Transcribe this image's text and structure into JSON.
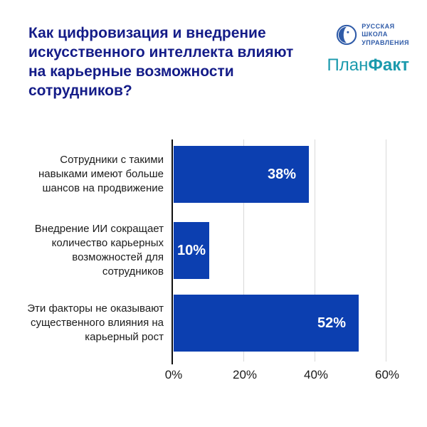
{
  "header": {
    "title": "Как цифровизация и внедрение искусственного интеллекта влияют на карьерные возможности сотрудников?",
    "logo_rsu": {
      "line1": "РУССКАЯ",
      "line2": "ШКОЛА",
      "line3": "УПРАВЛЕНИЯ"
    },
    "logo_planfact": {
      "part1": "План",
      "part2": "Факт"
    }
  },
  "colors": {
    "title": "#141c88",
    "bar": "#0c3fb0",
    "value_label": "#ffffff",
    "gridline": "#d9d9d9",
    "axis": "#111111",
    "rsu_blue": "#2f5ba8",
    "planfact_teal": "#1b9aad"
  },
  "chart_data": {
    "type": "bar",
    "orientation": "horizontal",
    "title": "Как цифровизация и внедрение искусственного интеллекта влияют на карьерные возможности сотрудников?",
    "categories": [
      "Сотрудники с такими навыками имеют больше шансов на продвижение",
      "Внедрение ИИ сокращает количество карьерных возможностей для сотрудников",
      "Эти факторы не оказывают существенного влияния на карьерный рост"
    ],
    "values": [
      38,
      10,
      52
    ],
    "value_labels": [
      "38%",
      "10%",
      "52%"
    ],
    "xlabel": "",
    "ylabel": "",
    "xlim": [
      0,
      60
    ],
    "x_ticks": [
      0,
      20,
      40,
      60
    ],
    "x_tick_labels": [
      "0%",
      "20%",
      "40%",
      "60%"
    ],
    "grid": "vertical",
    "legend": "none"
  }
}
